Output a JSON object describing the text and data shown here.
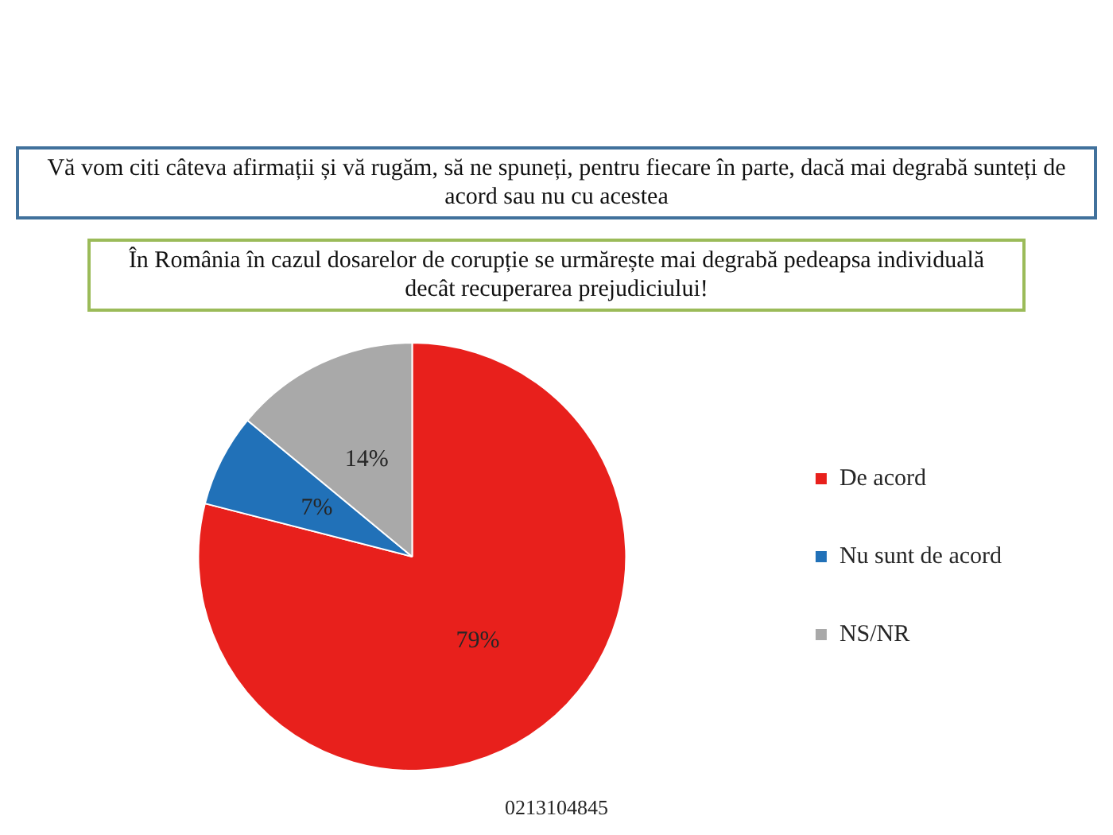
{
  "chart_data": {
    "type": "pie",
    "title": "Vă vom citi câteva afirmații și vă rugăm, să ne spuneți, pentru fiecare în parte, dacă mai degrabă sunteți de acord sau nu cu acestea",
    "subtitle": "În România în cazul dosarelor de corupție se urmărește mai degrabă pedeapsa individuală decât recuperarea prejudiciului!",
    "categories": [
      "De acord",
      "Nu sunt de acord",
      "NS/NR"
    ],
    "values": [
      79,
      7,
      14
    ],
    "colors": [
      "#e8201c",
      "#2171b8",
      "#a9a9a9"
    ],
    "value_labels": [
      "79%",
      "7%",
      "14%"
    ],
    "legend": "right",
    "annotations": [
      "0213104845"
    ]
  }
}
